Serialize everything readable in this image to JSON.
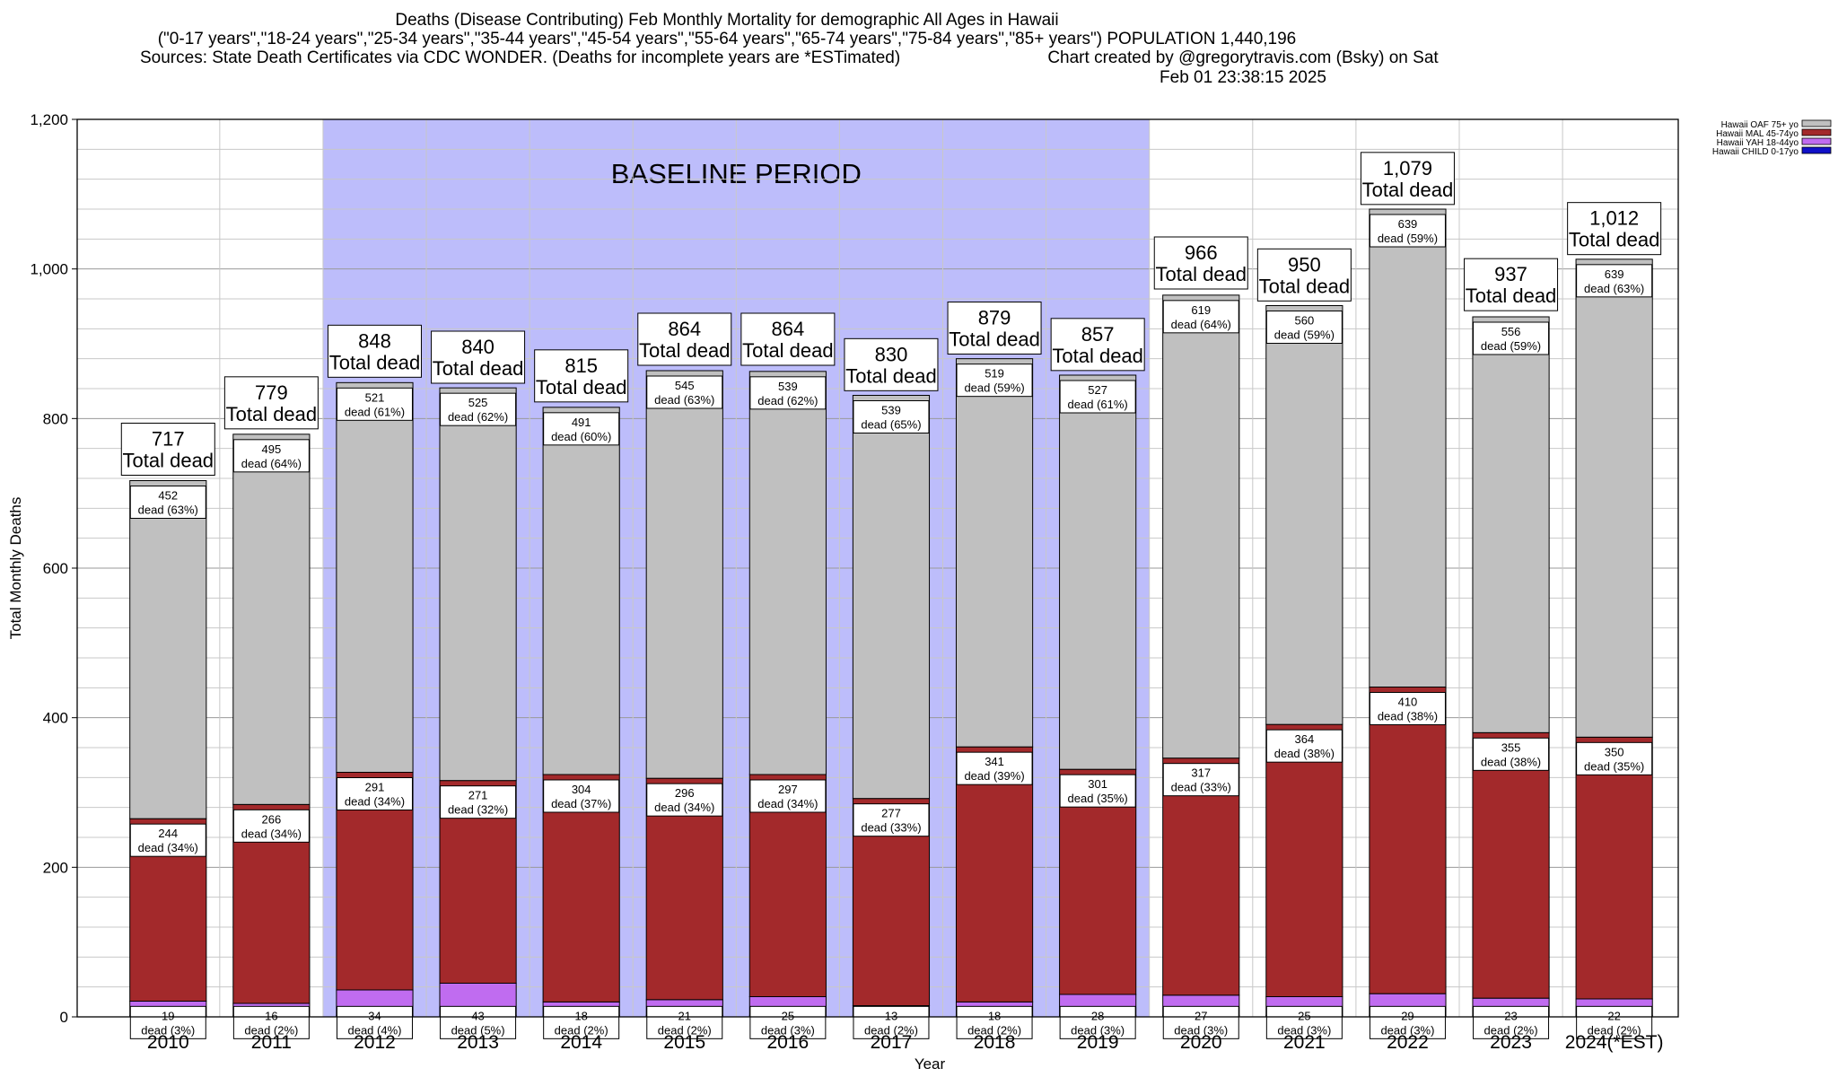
{
  "header": {
    "title_line1": "Deaths (Disease Contributing) Feb Monthly Mortality for demographic All Ages in Hawaii",
    "title_line2": "(\"0-17 years\",\"18-24 years\",\"25-34 years\",\"35-44 years\",\"45-54 years\",\"55-64 years\",\"65-74 years\",\"75-84 years\",\"85+ years\") POPULATION 1,440,196",
    "sources": "Sources: State Death Certificates via CDC WONDER. (Deaths for incomplete years are *ESTimated)",
    "credit": "Chart created by @gregorytravis.com (Bsky) on Sat Feb 01 23:38:15 2025"
  },
  "chart_data": {
    "type": "bar",
    "stacked": true,
    "xlabel": "Year",
    "ylabel": "Total Monthly Deaths",
    "ylim": [
      0,
      1200
    ],
    "yticks": [
      0,
      200,
      400,
      600,
      800,
      1000,
      1200
    ],
    "ytick_labels": [
      "0",
      "200",
      "400",
      "600",
      "800",
      "1,000",
      "1,200"
    ],
    "grid": true,
    "legend_position": "top-right",
    "categories": [
      "2010",
      "2011",
      "2012",
      "2013",
      "2014",
      "2015",
      "2016",
      "2017",
      "2018",
      "2019",
      "2020",
      "2021",
      "2022",
      "2023",
      "2024(*EST)"
    ],
    "baseline_annotation": {
      "label": "BASELINE PERIOD",
      "from": "2012",
      "to": "2019",
      "color": "#bdbdfb"
    },
    "series": [
      {
        "name": "Hawaii CHILD 0-17yo",
        "color": "#1010c8",
        "values": [
          2,
          2,
          2,
          2,
          2,
          2,
          2,
          2,
          2,
          2,
          2,
          2,
          2,
          2,
          2
        ],
        "labels": [
          "",
          "",
          "",
          "",
          "",
          "",
          "",
          "",
          "",
          "",
          "",
          "",
          "",
          "",
          ""
        ]
      },
      {
        "name": "Hawaii YAH 18-44yo",
        "color": "#c06cf0",
        "values": [
          19,
          16,
          34,
          43,
          18,
          21,
          25,
          13,
          18,
          28,
          27,
          25,
          29,
          23,
          22
        ],
        "labels": [
          "19\ndead (3%)",
          "16\ndead (2%)",
          "34\ndead (4%)",
          "43\ndead (5%)",
          "18\ndead (2%)",
          "21\ndead (2%)",
          "25\ndead (3%)",
          "13\ndead (2%)",
          "18\ndead (2%)",
          "28\ndead (3%)",
          "27\ndead (3%)",
          "25\ndead (3%)",
          "29\ndead (3%)",
          "23\ndead (2%)",
          "22\ndead (2%)"
        ]
      },
      {
        "name": "Hawaii MAL 45-74yo",
        "color": "#a3292b",
        "values": [
          244,
          266,
          291,
          271,
          304,
          296,
          297,
          277,
          341,
          301,
          317,
          364,
          410,
          355,
          350
        ],
        "labels": [
          "244\ndead (34%)",
          "266\ndead (34%)",
          "291\ndead (34%)",
          "271\ndead (32%)",
          "304\ndead (37%)",
          "296\ndead (34%)",
          "297\ndead (34%)",
          "277\ndead (33%)",
          "341\ndead (39%)",
          "301\ndead (35%)",
          "317\ndead (33%)",
          "364\ndead (38%)",
          "410\ndead (38%)",
          "355\ndead (38%)",
          "350\ndead (35%)"
        ]
      },
      {
        "name": "Hawaii OAF 75+ yo",
        "color": "#c0c0c0",
        "values": [
          452,
          495,
          521,
          525,
          491,
          545,
          539,
          539,
          519,
          527,
          619,
          560,
          639,
          556,
          639
        ],
        "labels": [
          "452\ndead (63%)",
          "495\ndead (64%)",
          "521\ndead (61%)",
          "525\ndead (62%)",
          "491\ndead (60%)",
          "545\ndead (63%)",
          "539\ndead (62%)",
          "539\ndead (65%)",
          "519\ndead (59%)",
          "527\ndead (61%)",
          "619\ndead (64%)",
          "560\ndead (59%)",
          "639\ndead (59%)",
          "556\ndead (59%)",
          "639\ndead (63%)"
        ]
      }
    ],
    "totals": [
      717,
      779,
      848,
      840,
      815,
      864,
      864,
      830,
      879,
      857,
      966,
      950,
      1079,
      937,
      1012
    ],
    "total_labels": [
      "717",
      "779",
      "848",
      "840",
      "815",
      "864",
      "864",
      "830",
      "879",
      "857",
      "966",
      "950",
      "1,079",
      "937",
      "1,012"
    ],
    "total_suffix": "Total dead"
  }
}
